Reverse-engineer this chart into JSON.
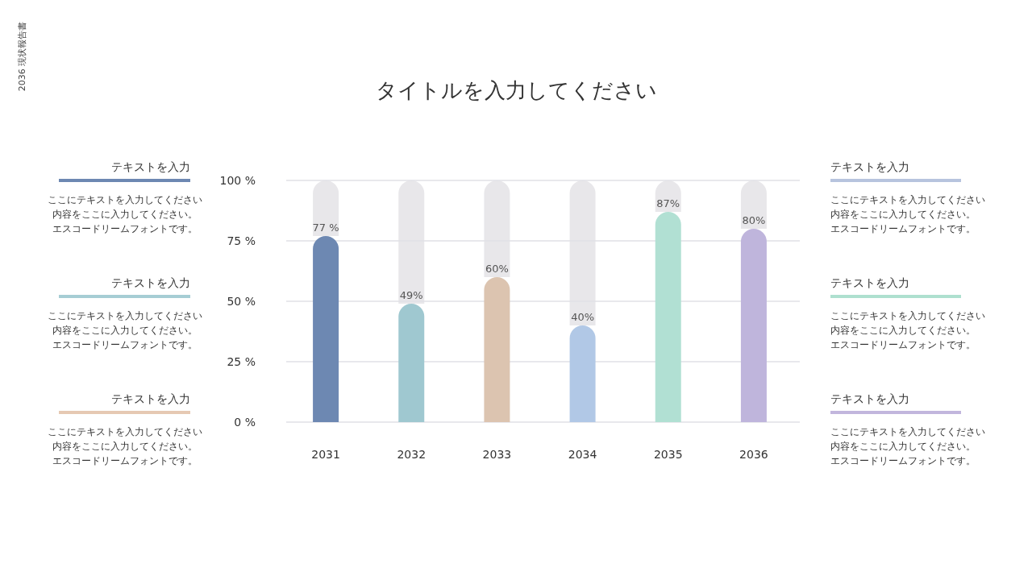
{
  "chart_data": [
    {
      "type": "other",
      "title": "テキストを入力",
      "color": "#6d88b2",
      "annotations": [
        "ここにテキストを入力してください",
        "内容をここに入力してください。",
        "エスコードリームフォントです。"
      ]
    },
    {
      "type": "other",
      "title": "テキストを入力",
      "color": "#a6cdd4",
      "annotations": [
        "ここにテキストを入力してください",
        "内容をここに入力してください。",
        "エスコードリームフォントです。"
      ]
    },
    {
      "type": "other",
      "title": "テキストを入力",
      "color": "#e6c9b3",
      "annotations": [
        "ここにテキストを入力してください",
        "内容をここに入力してください。",
        "エスコードリームフォントです。"
      ]
    },
    {
      "type": "bar",
      "title": "タイトルを入力してください",
      "annotations": [
        "2036 現状報告書"
      ],
      "categories": [
        "2031",
        "2032",
        "2033",
        "2034",
        "2035",
        "2036"
      ],
      "stacked": true,
      "series": [
        {
          "colors": [
            "#6d88b2",
            "#9fc8d0",
            "#dcc4b0",
            "#b1c8e6",
            "#b1e0d3",
            "#bfb5dc"
          ],
          "values": [
            77,
            49,
            60,
            40,
            87,
            80
          ],
          "value_labels": [
            "77 %",
            "49%",
            "60%",
            "40%",
            "87%",
            "80%"
          ]
        },
        {
          "color": "#e8e7ea",
          "values": [
            23,
            51,
            40,
            60,
            13,
            20
          ]
        }
      ],
      "ylim": [
        0,
        100
      ],
      "yticks": [
        {
          "value": 0,
          "label": "0 %"
        },
        {
          "value": 25,
          "label": "25 %"
        },
        {
          "value": 50,
          "label": "50 %"
        },
        {
          "value": 75,
          "label": "75 %"
        },
        {
          "value": 100,
          "label": "100 %"
        }
      ],
      "grid": "y"
    },
    {
      "type": "other",
      "title": "テキストを入力",
      "color": "#b7c4de",
      "annotations": [
        "ここにテキストを入力してください",
        "内容をここに入力してください。",
        "エスコードリームフォントです。"
      ]
    },
    {
      "type": "other",
      "title": "テキストを入力",
      "color": "#aee0cf",
      "annotations": [
        "ここにテキストを入力してください",
        "内容をここに入力してください。",
        "エスコードリームフォントです。"
      ]
    },
    {
      "type": "other",
      "title": "テキストを入力",
      "color": "#c2b6dd",
      "annotations": [
        "ここにテキストを入力してください",
        "内容をここに入力してください。",
        "エスコードリームフォントです。"
      ]
    }
  ]
}
